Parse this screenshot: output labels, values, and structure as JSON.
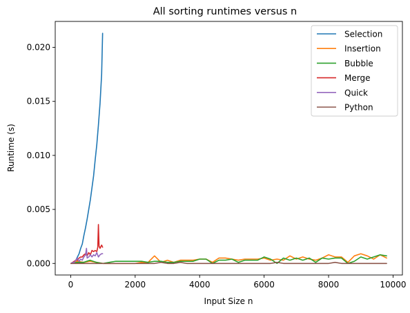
{
  "chart_data": {
    "type": "line",
    "title": "All sorting runtimes versus n",
    "xlabel": "Input Size n",
    "ylabel": "Runtime (s)",
    "xlim": [
      -480,
      10290
    ],
    "ylim": [
      -0.00107,
      0.0224
    ],
    "xticks": [
      0,
      2000,
      4000,
      6000,
      8000,
      10000
    ],
    "xtick_labels": [
      "0",
      "2000",
      "4000",
      "6000",
      "8000",
      "10000"
    ],
    "yticks": [
      0.0,
      0.005,
      0.01,
      0.015,
      0.02
    ],
    "ytick_labels": [
      "0.000",
      "0.005",
      "0.010",
      "0.015",
      "0.020"
    ],
    "grid": false,
    "legend_position": "top-right",
    "series": [
      {
        "name": "Selection",
        "color": "#1f77b4",
        "x": [
          10,
          60,
          110,
          160,
          210,
          260,
          310,
          360,
          410,
          460,
          510,
          560,
          610,
          660,
          710,
          760,
          810,
          860,
          910,
          960,
          990
        ],
        "y": [
          0.0,
          3e-05,
          0.0001,
          0.0003,
          0.0006,
          0.0009,
          0.0014,
          0.0018,
          0.0026,
          0.0033,
          0.0041,
          0.005,
          0.0059,
          0.007,
          0.0081,
          0.0096,
          0.011,
          0.0128,
          0.0148,
          0.0175,
          0.0213
        ]
      },
      {
        "name": "Insertion",
        "color": "#ff7f0e",
        "x": [
          10,
          200,
          400,
          600,
          800,
          1000,
          1200,
          1400,
          1600,
          1800,
          2000,
          2200,
          2400,
          2600,
          2800,
          3000,
          3200,
          3400,
          3600,
          3800,
          4000,
          4200,
          4400,
          4600,
          4800,
          5000,
          5200,
          5400,
          5600,
          5800,
          6000,
          6200,
          6400,
          6600,
          6800,
          7000,
          7200,
          7400,
          7600,
          7800,
          8000,
          8200,
          8400,
          8600,
          8800,
          9000,
          9200,
          9400,
          9600,
          9800
        ],
        "y": [
          0.0,
          0.0002,
          0.0001,
          0.0002,
          0.0001,
          0.0,
          0.0,
          0.0,
          0.0,
          0.0,
          0.0,
          0.0001,
          0.0001,
          0.0007,
          0.0001,
          0.0003,
          0.0001,
          0.0003,
          0.0003,
          0.0003,
          0.0004,
          0.0004,
          0.0001,
          0.0005,
          0.0005,
          0.0004,
          0.0003,
          0.0004,
          0.0004,
          0.0004,
          0.0005,
          0.0003,
          0.0004,
          0.0003,
          0.0007,
          0.0004,
          0.0006,
          0.0004,
          0.0003,
          0.0005,
          0.0008,
          0.0006,
          0.0006,
          0.0001,
          0.0007,
          0.0009,
          0.0007,
          0.0004,
          0.0008,
          0.0005
        ]
      },
      {
        "name": "Bubble",
        "color": "#2ca02c",
        "x": [
          10,
          200,
          400,
          600,
          800,
          1000,
          1200,
          1400,
          1600,
          1800,
          2000,
          2200,
          2400,
          2600,
          2800,
          3000,
          3200,
          3400,
          3600,
          3800,
          4000,
          4200,
          4400,
          4600,
          4800,
          5000,
          5200,
          5400,
          5600,
          5800,
          6000,
          6200,
          6400,
          6600,
          6800,
          7000,
          7200,
          7400,
          7600,
          7800,
          8000,
          8200,
          8400,
          8600,
          8800,
          9000,
          9200,
          9400,
          9600,
          9800
        ],
        "y": [
          0.0,
          0.0001,
          0.0001,
          0.0003,
          0.0001,
          0.0,
          0.0001,
          0.0002,
          0.0002,
          0.0002,
          0.0002,
          0.0002,
          0.0001,
          0.0002,
          0.0002,
          0.0001,
          0.0001,
          0.0002,
          0.0002,
          0.0002,
          0.0004,
          0.0004,
          0.0,
          0.0003,
          0.0003,
          0.0004,
          0.0001,
          0.0003,
          0.0003,
          0.0003,
          0.0006,
          0.0004,
          0.0,
          0.0005,
          0.0003,
          0.0005,
          0.0003,
          0.0005,
          0.0001,
          0.0005,
          0.0004,
          0.0005,
          0.0005,
          0.0,
          0.0002,
          0.0006,
          0.0004,
          0.0006,
          0.0008,
          0.0007
        ]
      },
      {
        "name": "Merge",
        "color": "#d62728",
        "x": [
          10,
          60,
          110,
          160,
          210,
          260,
          310,
          360,
          410,
          460,
          510,
          560,
          610,
          660,
          710,
          760,
          810,
          840,
          860,
          880,
          910,
          960,
          990
        ],
        "y": [
          0.0,
          0.0001,
          0.0002,
          0.0003,
          0.0003,
          0.0005,
          0.0006,
          0.0006,
          0.0008,
          0.0009,
          0.0007,
          0.001,
          0.0008,
          0.0012,
          0.0011,
          0.0012,
          0.0011,
          0.0015,
          0.0036,
          0.0016,
          0.0014,
          0.0017,
          0.0015
        ]
      },
      {
        "name": "Quick",
        "color": "#9467bd",
        "x": [
          10,
          60,
          110,
          160,
          210,
          260,
          310,
          360,
          410,
          460,
          490,
          510,
          560,
          610,
          660,
          710,
          760,
          810,
          860,
          910,
          960,
          990
        ],
        "y": [
          0.0,
          0.0001,
          0.0001,
          0.0003,
          0.0005,
          0.0002,
          0.0004,
          0.0003,
          0.0006,
          0.0008,
          0.0014,
          0.0005,
          0.0006,
          0.0008,
          0.0006,
          0.0008,
          0.0007,
          0.001,
          0.0006,
          0.0008,
          0.0009,
          0.0009
        ]
      },
      {
        "name": "Python",
        "color": "#8c564b",
        "x": [
          10,
          200,
          400,
          600,
          800,
          1000,
          1200,
          1400,
          1600,
          1800,
          2000,
          2200,
          2400,
          2600,
          2800,
          3000,
          3200,
          3400,
          3600,
          3800,
          4000,
          4200,
          4400,
          4600,
          4800,
          5000,
          5200,
          5400,
          5600,
          5800,
          6000,
          6200,
          6400,
          6600,
          6800,
          7000,
          7200,
          7400,
          7600,
          7800,
          8000,
          8200,
          8400,
          8600,
          8800,
          9000,
          9200,
          9400,
          9600,
          9800
        ],
        "y": [
          0.0,
          0.0,
          0.0,
          0.0,
          0.0,
          0.0,
          0.0,
          0.0,
          0.0,
          0.0,
          0.0,
          0.0,
          0.0,
          0.0,
          0.0001,
          0.0,
          0.0,
          0.0001,
          0.0,
          0.0,
          0.0,
          0.0,
          0.0,
          0.0,
          0.0,
          0.0,
          0.0,
          0.0,
          0.0,
          0.0,
          0.0,
          0.0,
          0.0001,
          0.0,
          0.0,
          0.0,
          0.0,
          0.0,
          0.0,
          0.0,
          0.0,
          0.0001,
          0.0,
          0.0,
          0.0,
          0.0,
          0.0,
          0.0,
          0.0,
          0.0
        ]
      }
    ]
  }
}
